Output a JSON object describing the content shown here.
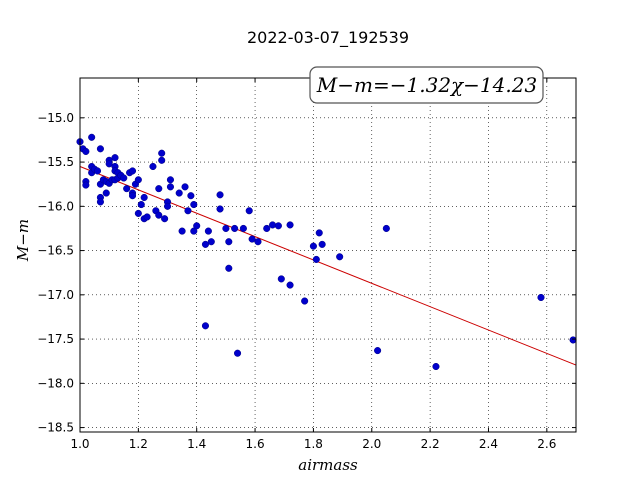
{
  "chart_data": {
    "type": "scatter",
    "title": "2022-03-07_192539",
    "xlabel": "airmass",
    "ylabel": "M−m",
    "annotation": "M−m=−1.32χ−14.23",
    "xlim": [
      1.0,
      2.7
    ],
    "ylim": [
      -18.55,
      -14.55
    ],
    "y_inverted": true,
    "grid": true,
    "xticks": [
      1.0,
      1.2,
      1.4,
      1.6,
      1.8,
      2.0,
      2.2,
      2.4,
      2.6
    ],
    "yticks": [
      -15.0,
      -15.5,
      -16.0,
      -16.5,
      -17.0,
      -17.5,
      -18.0,
      -18.5
    ],
    "xtick_labels": [
      "1.0",
      "1.2",
      "1.4",
      "1.6",
      "1.8",
      "2.0",
      "2.2",
      "2.4",
      "2.6"
    ],
    "ytick_labels": [
      "−15.0",
      "−15.5",
      "−16.0",
      "−16.5",
      "−17.0",
      "−17.5",
      "−18.0",
      "−18.5"
    ],
    "point_color": "#0000cc",
    "fit_color": "#cc0000",
    "fit": {
      "slope": -1.32,
      "intercept": -14.23
    },
    "points": [
      [
        1.0,
        -15.27
      ],
      [
        1.01,
        -15.35
      ],
      [
        1.02,
        -15.38
      ],
      [
        1.02,
        -15.72
      ],
      [
        1.02,
        -15.76
      ],
      [
        1.04,
        -15.22
      ],
      [
        1.04,
        -15.55
      ],
      [
        1.04,
        -15.62
      ],
      [
        1.05,
        -15.58
      ],
      [
        1.06,
        -15.6
      ],
      [
        1.07,
        -15.35
      ],
      [
        1.07,
        -15.75
      ],
      [
        1.07,
        -15.9
      ],
      [
        1.07,
        -15.95
      ],
      [
        1.08,
        -15.7
      ],
      [
        1.09,
        -15.72
      ],
      [
        1.09,
        -15.85
      ],
      [
        1.1,
        -15.48
      ],
      [
        1.1,
        -15.52
      ],
      [
        1.1,
        -15.74
      ],
      [
        1.11,
        -15.7
      ],
      [
        1.12,
        -15.45
      ],
      [
        1.12,
        -15.55
      ],
      [
        1.12,
        -15.6
      ],
      [
        1.12,
        -15.7
      ],
      [
        1.13,
        -15.68
      ],
      [
        1.13,
        -15.62
      ],
      [
        1.14,
        -15.65
      ],
      [
        1.15,
        -15.68
      ],
      [
        1.16,
        -15.8
      ],
      [
        1.17,
        -15.62
      ],
      [
        1.18,
        -15.6
      ],
      [
        1.18,
        -15.85
      ],
      [
        1.18,
        -15.88
      ],
      [
        1.19,
        -15.75
      ],
      [
        1.2,
        -15.7
      ],
      [
        1.2,
        -16.08
      ],
      [
        1.21,
        -15.98
      ],
      [
        1.22,
        -15.9
      ],
      [
        1.22,
        -16.14
      ],
      [
        1.23,
        -16.12
      ],
      [
        1.25,
        -15.55
      ],
      [
        1.26,
        -16.05
      ],
      [
        1.27,
        -15.8
      ],
      [
        1.27,
        -16.1
      ],
      [
        1.28,
        -15.4
      ],
      [
        1.28,
        -15.48
      ],
      [
        1.29,
        -16.14
      ],
      [
        1.3,
        -15.95
      ],
      [
        1.3,
        -16.0
      ],
      [
        1.31,
        -15.7
      ],
      [
        1.31,
        -15.78
      ],
      [
        1.34,
        -15.85
      ],
      [
        1.35,
        -16.28
      ],
      [
        1.36,
        -15.78
      ],
      [
        1.37,
        -16.05
      ],
      [
        1.38,
        -15.88
      ],
      [
        1.39,
        -15.98
      ],
      [
        1.39,
        -16.28
      ],
      [
        1.4,
        -16.22
      ],
      [
        1.43,
        -16.43
      ],
      [
        1.43,
        -17.35
      ],
      [
        1.44,
        -16.28
      ],
      [
        1.45,
        -16.4
      ],
      [
        1.48,
        -15.87
      ],
      [
        1.48,
        -16.03
      ],
      [
        1.5,
        -16.25
      ],
      [
        1.51,
        -16.4
      ],
      [
        1.51,
        -16.7
      ],
      [
        1.53,
        -16.25
      ],
      [
        1.54,
        -17.66
      ],
      [
        1.56,
        -16.25
      ],
      [
        1.58,
        -16.05
      ],
      [
        1.59,
        -16.37
      ],
      [
        1.61,
        -16.4
      ],
      [
        1.64,
        -16.25
      ],
      [
        1.66,
        -16.21
      ],
      [
        1.68,
        -16.22
      ],
      [
        1.69,
        -16.82
      ],
      [
        1.72,
        -16.21
      ],
      [
        1.72,
        -16.89
      ],
      [
        1.77,
        -17.07
      ],
      [
        1.8,
        -16.45
      ],
      [
        1.81,
        -16.6
      ],
      [
        1.82,
        -16.3
      ],
      [
        1.83,
        -16.43
      ],
      [
        1.89,
        -16.57
      ],
      [
        2.02,
        -17.63
      ],
      [
        2.05,
        -16.25
      ],
      [
        2.22,
        -17.81
      ],
      [
        2.58,
        -17.03
      ],
      [
        2.69,
        -17.51
      ]
    ]
  }
}
